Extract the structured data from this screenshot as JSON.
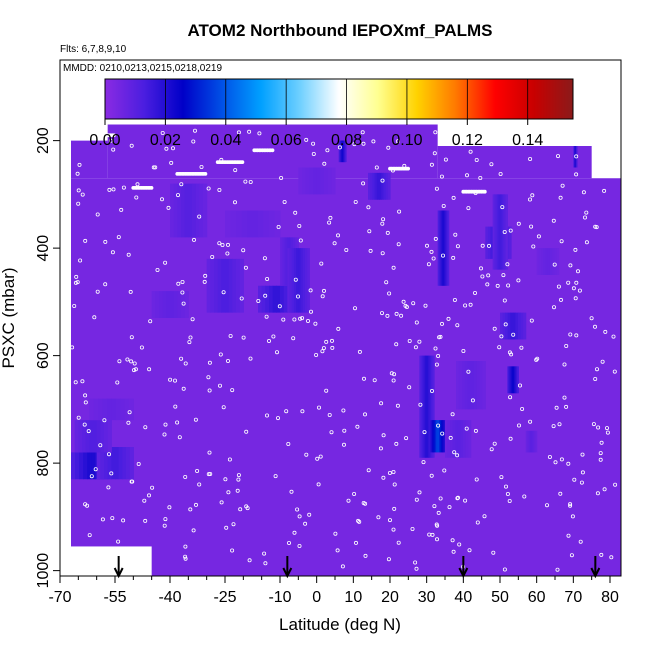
{
  "chart_data": {
    "type": "heatmap",
    "title": "ATOM2 Northbound IEPOXmf_PALMS",
    "annotations": [
      "Flts: 6,7,8,9,10",
      "MMDD: 0210,0213,0215,0218,0219"
    ],
    "xlabel": "Latitude (deg N)",
    "ylabel": "PSXC (mbar)",
    "xlim": [
      -70,
      83
    ],
    "ylim": [
      1010,
      50
    ],
    "y_reversed": true,
    "xticks_major": [
      -70,
      -55,
      -40,
      -25,
      -10,
      0,
      10,
      20,
      30,
      40,
      50,
      60,
      70,
      80
    ],
    "xticks_labels": [
      "-70",
      "-55",
      "-40",
      "-25",
      "-10",
      "0",
      "10",
      "20",
      "30",
      "40",
      "50",
      "60",
      "70",
      "80"
    ],
    "yticks": [
      200,
      400,
      600,
      800,
      1000
    ],
    "yticks_labels": [
      "200",
      "400",
      "600",
      "800",
      "1000"
    ],
    "colorbar": {
      "ticks": [
        0.0,
        0.02,
        0.04,
        0.06,
        0.08,
        0.1,
        0.12,
        0.14
      ],
      "tick_labels": [
        "0.00",
        "0.02",
        "0.04",
        "0.06",
        "0.08",
        "0.10",
        "0.12",
        "0.14"
      ],
      "vmin": 0.0,
      "vmax": 0.155,
      "colors": [
        "#8a2be2",
        "#4b1ee0",
        "#0000c8",
        "#0050e6",
        "#00a0ff",
        "#6fd0ff",
        "#ffffff",
        "#ffff90",
        "#ffd200",
        "#ff7800",
        "#ff0000",
        "#c80000",
        "#8b1a1a"
      ]
    },
    "background_value": 0.004,
    "field_extent": [
      {
        "lat": [
          -67,
          83
        ],
        "p": [
          270,
          1010
        ]
      },
      {
        "lat": [
          -57,
          33
        ],
        "p": [
          170,
          270
        ]
      },
      {
        "lat": [
          -67,
          -57
        ],
        "p": [
          200,
          270
        ]
      },
      {
        "lat": [
          33,
          75
        ],
        "p": [
          210,
          270
        ]
      }
    ],
    "gaps": [
      {
        "lat": [
          -67,
          -45
        ],
        "p": [
          955,
          1010
        ]
      }
    ],
    "enhanced_regions": [
      {
        "lat": [
          -67,
          -56
        ],
        "p": [
          780,
          830
        ],
        "value": 0.022
      },
      {
        "lat": [
          -60,
          -50
        ],
        "p": [
          770,
          830
        ],
        "value": 0.015
      },
      {
        "lat": [
          -66,
          -56
        ],
        "p": [
          720,
          780
        ],
        "value": 0.012
      },
      {
        "lat": [
          -62,
          -50
        ],
        "p": [
          680,
          720
        ],
        "value": 0.008
      },
      {
        "lat": [
          -45,
          -35
        ],
        "p": [
          480,
          530
        ],
        "value": 0.009
      },
      {
        "lat": [
          -40,
          -30
        ],
        "p": [
          280,
          380
        ],
        "value": 0.011
      },
      {
        "lat": [
          -30,
          -20
        ],
        "p": [
          420,
          520
        ],
        "value": 0.013
      },
      {
        "lat": [
          -25,
          -10
        ],
        "p": [
          330,
          380
        ],
        "value": 0.008
      },
      {
        "lat": [
          -16,
          -6
        ],
        "p": [
          470,
          520
        ],
        "value": 0.018
      },
      {
        "lat": [
          -10,
          -5
        ],
        "p": [
          380,
          470
        ],
        "value": 0.012
      },
      {
        "lat": [
          -8,
          -2
        ],
        "p": [
          400,
          520
        ],
        "value": 0.016
      },
      {
        "lat": [
          -5,
          5
        ],
        "p": [
          250,
          300
        ],
        "value": 0.008
      },
      {
        "lat": [
          14,
          20
        ],
        "p": [
          260,
          310
        ],
        "value": 0.017
      },
      {
        "lat": [
          6,
          8
        ],
        "p": [
          200,
          240
        ],
        "value": 0.024
      },
      {
        "lat": [
          28,
          32
        ],
        "p": [
          600,
          790
        ],
        "value": 0.02
      },
      {
        "lat": [
          31,
          35
        ],
        "p": [
          720,
          780
        ],
        "value": 0.038
      },
      {
        "lat": [
          33,
          36
        ],
        "p": [
          330,
          470
        ],
        "value": 0.022
      },
      {
        "lat": [
          35,
          42
        ],
        "p": [
          720,
          790
        ],
        "value": 0.01
      },
      {
        "lat": [
          38,
          46
        ],
        "p": [
          610,
          700
        ],
        "value": 0.009
      },
      {
        "lat": [
          46,
          53
        ],
        "p": [
          360,
          420
        ],
        "value": 0.018
      },
      {
        "lat": [
          48,
          52
        ],
        "p": [
          300,
          440
        ],
        "value": 0.015
      },
      {
        "lat": [
          50,
          57
        ],
        "p": [
          520,
          570
        ],
        "value": 0.017
      },
      {
        "lat": [
          52,
          55
        ],
        "p": [
          620,
          670
        ],
        "value": 0.025
      },
      {
        "lat": [
          57,
          60
        ],
        "p": [
          740,
          780
        ],
        "value": 0.01
      },
      {
        "lat": [
          60,
          66
        ],
        "p": [
          400,
          450
        ],
        "value": 0.008
      },
      {
        "lat": [
          70,
          71
        ],
        "p": [
          210,
          250
        ],
        "value": 0.022
      }
    ],
    "flight_track_point_count": 520,
    "arrows": [
      {
        "lat": -54,
        "label": ""
      },
      {
        "lat": -8,
        "label": ""
      },
      {
        "lat": 40,
        "label": ""
      },
      {
        "lat": 76,
        "label": ""
      }
    ],
    "grid": false
  }
}
